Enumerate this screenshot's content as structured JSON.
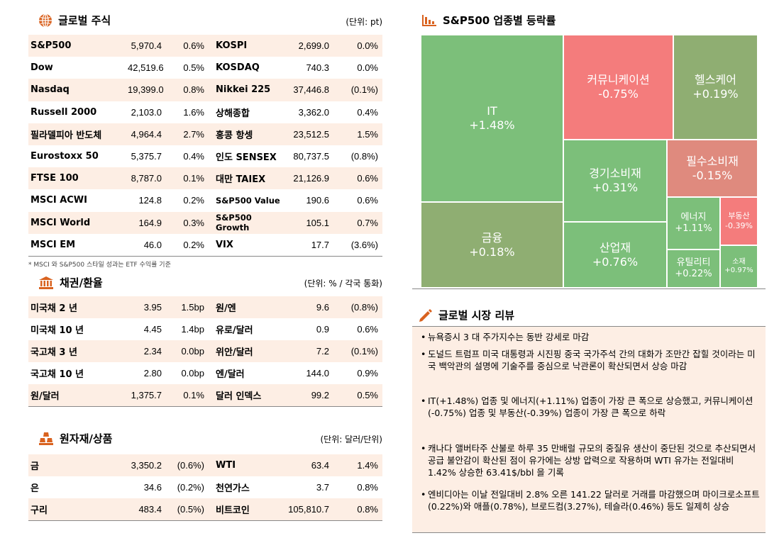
{
  "global_stocks": {
    "title": "글로벌 주식",
    "unit": "(단위: pt)",
    "rows": [
      {
        "n1": "S&P500",
        "v1": "5,970.4",
        "p1": "0.6%",
        "n2": "KOSPI",
        "v2": "2,699.0",
        "p2": "0.0%"
      },
      {
        "n1": "Dow",
        "v1": "42,519.6",
        "p1": "0.5%",
        "n2": "KOSDAQ",
        "v2": "740.3",
        "p2": "0.0%"
      },
      {
        "n1": "Nasdaq",
        "v1": "19,399.0",
        "p1": "0.8%",
        "n2": "Nikkei 225",
        "v2": "37,446.8",
        "p2": "(0.1%)"
      },
      {
        "n1": "Russell 2000",
        "v1": "2,103.0",
        "p1": "1.6%",
        "n2": "상해종합",
        "v2": "3,362.0",
        "p2": "0.4%"
      },
      {
        "n1": "필라델피아 반도체",
        "v1": "4,964.4",
        "p1": "2.7%",
        "n2": "홍콩 항셍",
        "v2": "23,512.5",
        "p2": "1.5%"
      },
      {
        "n1": "Eurostoxx 50",
        "v1": "5,375.7",
        "p1": "0.4%",
        "n2": "인도 SENSEX",
        "v2": "80,737.5",
        "p2": "(0.8%)"
      },
      {
        "n1": "FTSE 100",
        "v1": "8,787.0",
        "p1": "0.1%",
        "n2": "대만 TAIEX",
        "v2": "21,126.9",
        "p2": "0.6%"
      },
      {
        "n1": "MSCI ACWI",
        "v1": "124.8",
        "p1": "0.2%",
        "n2": "S&P500 Value",
        "v2": "190.6",
        "p2": "0.6%"
      },
      {
        "n1": "MSCI World",
        "v1": "164.9",
        "p1": "0.3%",
        "n2": "S&P500 Growth",
        "v2": "105.1",
        "p2": "0.7%"
      },
      {
        "n1": "MSCI EM",
        "v1": "46.0",
        "p1": "0.2%",
        "n2": "VIX",
        "v2": "17.7",
        "p2": "(3.6%)"
      }
    ],
    "footnote": "* MSCI 와 S&P500 스타일 성과는 ETF 수익률 기준"
  },
  "bonds_fx": {
    "title": "채권/환율",
    "unit": "(단위: % / 각국 통화)",
    "rows": [
      {
        "n1": "미국채 2 년",
        "v1": "3.95",
        "p1": "1.5bp",
        "n2": "원/엔",
        "v2": "9.6",
        "p2": "(0.8%)"
      },
      {
        "n1": "미국채 10 년",
        "v1": "4.45",
        "p1": "1.4bp",
        "n2": "유로/달러",
        "v2": "0.9",
        "p2": "0.6%"
      },
      {
        "n1": "국고채 3 년",
        "v1": "2.34",
        "p1": "0.0bp",
        "n2": "위안/달러",
        "v2": "7.2",
        "p2": "(0.1%)"
      },
      {
        "n1": "국고채 10 년",
        "v1": "2.80",
        "p1": "0.0bp",
        "n2": "엔/달러",
        "v2": "144.0",
        "p2": "0.9%"
      },
      {
        "n1": "원/달러",
        "v1": "1,375.7",
        "p1": "0.1%",
        "n2": "달러 인덱스",
        "v2": "99.2",
        "p2": "0.5%"
      }
    ]
  },
  "commodities": {
    "title": "원자재/상품",
    "unit": "(단위: 달러/단위)",
    "rows": [
      {
        "n1": "금",
        "v1": "3,350.2",
        "p1": "(0.6%)",
        "n2": "WTI",
        "v2": "63.4",
        "p2": "1.4%"
      },
      {
        "n1": "은",
        "v1": "34.6",
        "p1": "(0.2%)",
        "n2": "천연가스",
        "v2": "3.7",
        "p2": "0.8%"
      },
      {
        "n1": "구리",
        "v1": "483.4",
        "p1": "(0.5%)",
        "n2": "비트코인",
        "v2": "105,810.7",
        "p2": "0.8%"
      }
    ]
  },
  "sector_treemap": {
    "title": "S&P500 업종별 등락률",
    "colors": {
      "strong_up": "#7cbf7a",
      "mild_up": "#8fae72",
      "strong_down": "#f47c7c",
      "mild_down": "#df8a7e"
    },
    "tiles": [
      {
        "name": "IT",
        "value": "+1.48%"
      },
      {
        "name": "커뮤니케이션",
        "value": "-0.75%"
      },
      {
        "name": "헬스케어",
        "value": "+0.19%"
      },
      {
        "name": "경기소비재",
        "value": "+0.31%"
      },
      {
        "name": "필수소비재",
        "value": "-0.15%"
      },
      {
        "name": "에너지",
        "value": "+1.11%"
      },
      {
        "name": "부동산",
        "value": "-0.39%"
      },
      {
        "name": "금융",
        "value": "+0.18%"
      },
      {
        "name": "산업재",
        "value": "+0.76%"
      },
      {
        "name": "유틸리티",
        "value": "+0.22%"
      },
      {
        "name": "소재",
        "value": "+0.97%"
      }
    ]
  },
  "market_review": {
    "title": "글로벌 시장 리뷰",
    "items": [
      "뉴욕증시 3 대 주가지수는 동반 강세로 마감",
      "도널드 트럼프 미국 대통령과 시진핑 중국 국가주석 간의 대화가 조만간 잡힐 것이라는 미국 백악관의 설명에 기술주를 중심으로 낙관론이 확산되면서 상승 마감",
      "IT(+1.48%) 업종 및 에너지(+1.11%) 업종이 가장 큰 폭으로 상승했고, 커뮤니케이션(-0.75%) 업종 및 부동산(-0.39%) 업종이 가장 큰 폭으로 하락",
      "캐나다 앨버타주 산불로 하루 35 만배럴 규모의 중질유 생산이 중단된 것으로 추산되면서 공급 불안감이 확산된 점이 유가에는 상방 압력으로 작용하며 WTI 유가는 전일대비 1.42% 상승한 63.41$/bbl 을 기록",
      "엔비디아는 이날 전일대비 2.8% 오른 141.22 달러로 거래를 마감했으며 마이크로소프트(0.22%)와 애플(0.78%), 브로드컴(3.27%), 테슬라(0.46%) 등도 일제히 상승"
    ]
  }
}
